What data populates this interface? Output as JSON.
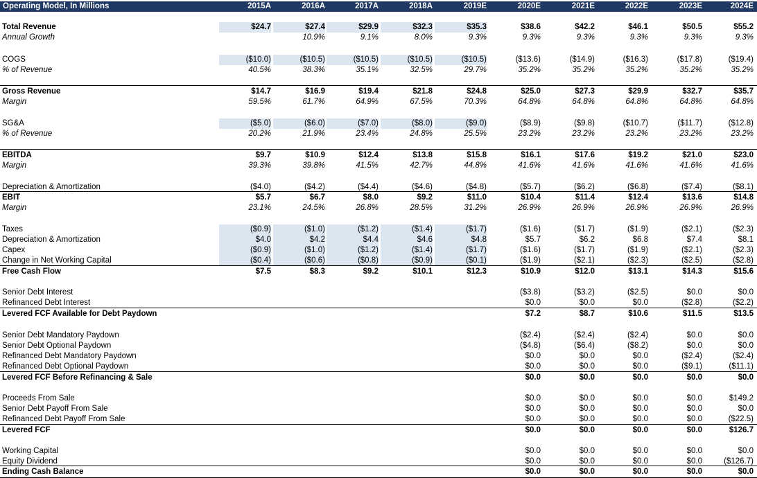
{
  "header": {
    "title": "Operating Model, In Millions",
    "years": [
      "2015A",
      "2016A",
      "2017A",
      "2018A",
      "2019E",
      "2020E",
      "2021E",
      "2022E",
      "2023E",
      "2024E"
    ]
  },
  "rows": [
    {
      "label": "Total Revenue",
      "style": "bold",
      "shaded": true,
      "values": [
        "$24.7",
        "$27.4",
        "$29.9",
        "$32.3",
        "$35.3",
        "$38.6",
        "$42.2",
        "$46.1",
        "$50.5",
        "$55.2"
      ]
    },
    {
      "label": "Annual Growth",
      "style": "ital",
      "shaded": false,
      "values": [
        "",
        "10.9%",
        "9.1%",
        "8.0%",
        "9.3%",
        "9.3%",
        "9.3%",
        "9.3%",
        "9.3%",
        "9.3%"
      ]
    },
    {
      "label": "COGS",
      "style": "",
      "shaded": true,
      "values": [
        "($10.0)",
        "($10.5)",
        "($10.5)",
        "($10.5)",
        "($10.5)",
        "($13.6)",
        "($14.9)",
        "($16.3)",
        "($17.8)",
        "($19.4)"
      ]
    },
    {
      "label": "% of Revenue",
      "style": "ital",
      "shaded": false,
      "values": [
        "40.5%",
        "38.3%",
        "35.1%",
        "32.5%",
        "29.7%",
        "35.2%",
        "35.2%",
        "35.2%",
        "35.2%",
        "35.2%"
      ]
    },
    {
      "label": "Gross Revenue",
      "style": "bold",
      "shaded": false,
      "values": [
        "$14.7",
        "$16.9",
        "$19.4",
        "$21.8",
        "$24.8",
        "$25.0",
        "$27.3",
        "$29.9",
        "$32.7",
        "$35.7"
      ]
    },
    {
      "label": "Margin",
      "style": "ital",
      "shaded": false,
      "values": [
        "59.5%",
        "61.7%",
        "64.9%",
        "67.5%",
        "70.3%",
        "64.8%",
        "64.8%",
        "64.8%",
        "64.8%",
        "64.8%"
      ]
    },
    {
      "label": "SG&A",
      "style": "",
      "shaded": true,
      "values": [
        "($5.0)",
        "($6.0)",
        "($7.0)",
        "($8.0)",
        "($9.0)",
        "($8.9)",
        "($9.8)",
        "($10.7)",
        "($11.7)",
        "($12.8)"
      ]
    },
    {
      "label": "% of Revenue",
      "style": "ital",
      "shaded": false,
      "values": [
        "20.2%",
        "21.9%",
        "23.4%",
        "24.8%",
        "25.5%",
        "23.2%",
        "23.2%",
        "23.2%",
        "23.2%",
        "23.2%"
      ]
    },
    {
      "label": "EBITDA",
      "style": "bold",
      "shaded": false,
      "values": [
        "$9.7",
        "$10.9",
        "$12.4",
        "$13.8",
        "$15.8",
        "$16.1",
        "$17.6",
        "$19.2",
        "$21.0",
        "$23.0"
      ]
    },
    {
      "label": "Margin",
      "style": "ital",
      "shaded": false,
      "values": [
        "39.3%",
        "39.8%",
        "41.5%",
        "42.7%",
        "44.8%",
        "41.6%",
        "41.6%",
        "41.6%",
        "41.6%",
        "41.6%"
      ]
    },
    {
      "label": "Depreciation & Amortization",
      "style": "",
      "shaded": false,
      "values": [
        "($4.0)",
        "($4.2)",
        "($4.4)",
        "($4.6)",
        "($4.8)",
        "($5.7)",
        "($6.2)",
        "($6.8)",
        "($7.4)",
        "($8.1)"
      ]
    },
    {
      "label": "EBIT",
      "style": "bold",
      "shaded": false,
      "values": [
        "$5.7",
        "$6.7",
        "$8.0",
        "$9.2",
        "$11.0",
        "$10.4",
        "$11.4",
        "$12.4",
        "$13.6",
        "$14.8"
      ]
    },
    {
      "label": "Margin",
      "style": "ital",
      "shaded": false,
      "values": [
        "23.1%",
        "24.5%",
        "26.8%",
        "28.5%",
        "31.2%",
        "26.9%",
        "26.9%",
        "26.9%",
        "26.9%",
        "26.9%"
      ]
    },
    {
      "label": "Taxes",
      "style": "",
      "shaded": true,
      "values": [
        "($0.9)",
        "($1.0)",
        "($1.2)",
        "($1.4)",
        "($1.7)",
        "($1.6)",
        "($1.7)",
        "($1.9)",
        "($2.1)",
        "($2.3)"
      ]
    },
    {
      "label": "Depreciation & Amortization",
      "style": "",
      "shaded": true,
      "values": [
        "$4.0",
        "$4.2",
        "$4.4",
        "$4.6",
        "$4.8",
        "$5.7",
        "$6.2",
        "$6.8",
        "$7.4",
        "$8.1"
      ]
    },
    {
      "label": "Capex",
      "style": "",
      "shaded": true,
      "values": [
        "($0.9)",
        "($1.0)",
        "($1.2)",
        "($1.4)",
        "($1.7)",
        "($1.6)",
        "($1.7)",
        "($1.9)",
        "($2.1)",
        "($2.3)"
      ]
    },
    {
      "label": "Change in Net Working Capital",
      "style": "",
      "shaded": true,
      "values": [
        "($0.4)",
        "($0.6)",
        "($0.8)",
        "($0.9)",
        "($0.1)",
        "($1.9)",
        "($2.1)",
        "($2.3)",
        "($2.5)",
        "($2.8)"
      ]
    },
    {
      "label": "Free Cash Flow",
      "style": "bold",
      "shaded": false,
      "values": [
        "$7.5",
        "$8.3",
        "$9.2",
        "$10.1",
        "$12.3",
        "$10.9",
        "$12.0",
        "$13.1",
        "$14.3",
        "$15.6"
      ]
    },
    {
      "label": "Senior Debt Interest",
      "style": "",
      "shaded": false,
      "values": [
        "",
        "",
        "",
        "",
        "",
        "($3.8)",
        "($3.2)",
        "($2.5)",
        "$0.0",
        "$0.0"
      ]
    },
    {
      "label": "Refinanced Debt Interest",
      "style": "",
      "shaded": false,
      "values": [
        "",
        "",
        "",
        "",
        "",
        "$0.0",
        "$0.0",
        "$0.0",
        "($2.8)",
        "($2.2)"
      ]
    },
    {
      "label": "Levered FCF Available for Debt Paydown",
      "style": "bold",
      "shaded": false,
      "values": [
        "",
        "",
        "",
        "",
        "",
        "$7.2",
        "$8.7",
        "$10.6",
        "$11.5",
        "$13.5"
      ]
    },
    {
      "label": "Senior Debt Mandatory Paydown",
      "style": "",
      "shaded": false,
      "values": [
        "",
        "",
        "",
        "",
        "",
        "($2.4)",
        "($2.4)",
        "($2.4)",
        "$0.0",
        "$0.0"
      ]
    },
    {
      "label": "Senior Debt Optional Paydown",
      "style": "",
      "shaded": false,
      "values": [
        "",
        "",
        "",
        "",
        "",
        "($4.8)",
        "($6.4)",
        "($8.2)",
        "$0.0",
        "$0.0"
      ]
    },
    {
      "label": "Refinanced Debt Mandatory Paydown",
      "style": "",
      "shaded": false,
      "values": [
        "",
        "",
        "",
        "",
        "",
        "$0.0",
        "$0.0",
        "$0.0",
        "($2.4)",
        "($2.4)"
      ]
    },
    {
      "label": "Refinanced Debt Optional Paydown",
      "style": "",
      "shaded": false,
      "values": [
        "",
        "",
        "",
        "",
        "",
        "$0.0",
        "$0.0",
        "$0.0",
        "($9.1)",
        "($11.1)"
      ]
    },
    {
      "label": "Levered FCF Before Refinancing & Sale",
      "style": "bold",
      "shaded": false,
      "values": [
        "",
        "",
        "",
        "",
        "",
        "$0.0",
        "$0.0",
        "$0.0",
        "$0.0",
        "$0.0"
      ]
    },
    {
      "label": "Proceeds From Sale",
      "style": "",
      "shaded": false,
      "values": [
        "",
        "",
        "",
        "",
        "",
        "$0.0",
        "$0.0",
        "$0.0",
        "$0.0",
        "$149.2"
      ]
    },
    {
      "label": "Senior Debt Payoff From Sale",
      "style": "",
      "shaded": false,
      "values": [
        "",
        "",
        "",
        "",
        "",
        "$0.0",
        "$0.0",
        "$0.0",
        "$0.0",
        "$0.0"
      ]
    },
    {
      "label": "Refinanced Debt Payoff From Sale",
      "style": "",
      "shaded": false,
      "values": [
        "",
        "",
        "",
        "",
        "",
        "$0.0",
        "$0.0",
        "$0.0",
        "$0.0",
        "($22.5)"
      ]
    },
    {
      "label": "Levered FCF",
      "style": "bold",
      "shaded": false,
      "values": [
        "",
        "",
        "",
        "",
        "",
        "$0.0",
        "$0.0",
        "$0.0",
        "$0.0",
        "$126.7"
      ]
    },
    {
      "label": "Working Capital",
      "style": "",
      "shaded": false,
      "values": [
        "",
        "",
        "",
        "",
        "",
        "$0.0",
        "$0.0",
        "$0.0",
        "$0.0",
        "$0.0"
      ]
    },
    {
      "label": "Equity Dividend",
      "style": "",
      "shaded": false,
      "values": [
        "",
        "",
        "",
        "",
        "",
        "$0.0",
        "$0.0",
        "$0.0",
        "$0.0",
        "($126.7)"
      ]
    },
    {
      "label": "Ending Cash Balance",
      "style": "bold",
      "shaded": false,
      "values": [
        "",
        "",
        "",
        "",
        "",
        "$0.0",
        "$0.0",
        "$0.0",
        "$0.0",
        "$0.0"
      ]
    }
  ]
}
